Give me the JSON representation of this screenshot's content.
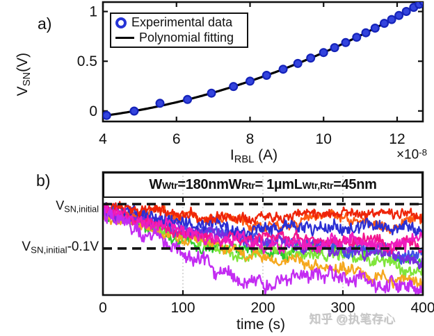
{
  "ui": {
    "panel_a_label": "a)",
    "panel_b_label": "b)",
    "watermark": "知乎 @执笔存心"
  },
  "rich_labels": {
    "a_ylabel": [
      [
        "V",
        0
      ],
      [
        "SN",
        1
      ],
      [
        "(V)",
        0
      ]
    ],
    "a_xlabel": [
      [
        "I",
        0
      ],
      [
        "RBL",
        1
      ],
      [
        " (A)",
        0
      ]
    ],
    "a_x_multiplier": [
      [
        "×10",
        0
      ],
      [
        "-8",
        2
      ]
    ],
    "b_ref_top": [
      [
        "V",
        0
      ],
      [
        "SN,initial",
        1
      ]
    ],
    "b_ref_bottom": [
      [
        "V",
        0
      ],
      [
        "SN,initial",
        1
      ],
      [
        "-0.1V",
        0
      ]
    ],
    "b_annotation": [
      [
        "W",
        0
      ],
      [
        "Wtr",
        1
      ],
      [
        "=180nm ",
        0
      ],
      [
        "W",
        0
      ],
      [
        "Rtr",
        1
      ],
      [
        "= 1µm ",
        0
      ],
      [
        "L",
        0
      ],
      [
        "Wtr,Rtr",
        1
      ],
      [
        "=45nm",
        0
      ]
    ],
    "b_xlabel": [
      [
        "time (s)",
        0
      ]
    ]
  },
  "legend": {
    "position": "top-left",
    "entries": [
      {
        "marker": "circle",
        "label": "Experimental data"
      },
      {
        "marker": "line",
        "label": "Polynomial fitting"
      }
    ]
  },
  "colors": {
    "axis": "#111111",
    "grid": "#c4c4c4",
    "dashed_reference": "#111111",
    "marker_fill": "#3444dd",
    "marker_edge": "#1523b9",
    "fit_line": "#000000",
    "watermark": "#c9c9c9"
  },
  "chart_data": [
    {
      "type": "scatter",
      "title": "",
      "xlabel": "I_RBL (A)",
      "ylabel": "V_SN (V)",
      "x_unit_multiplier": "×10^-8",
      "xlim": [
        4,
        12.7
      ],
      "ylim": [
        -0.106,
        1.095
      ],
      "xticks": [
        4,
        6,
        8,
        10,
        12
      ],
      "yticks": [
        0,
        0.5,
        1
      ],
      "ytick_labels": [
        "0",
        "0.5",
        "1"
      ],
      "grid": false,
      "legend_position": "top-left",
      "series": [
        {
          "name": "Experimental data",
          "type": "scatter",
          "marker": "circle",
          "color": "#3444dd",
          "edge_color": "#1523b9",
          "points": [
            [
              4.1,
              -0.045
            ],
            [
              4.85,
              -0.001
            ],
            [
              5.55,
              0.077
            ],
            [
              6.3,
              0.115
            ],
            [
              6.95,
              0.179
            ],
            [
              7.55,
              0.246
            ],
            [
              8.0,
              0.3
            ],
            [
              8.45,
              0.358
            ],
            [
              8.9,
              0.42
            ],
            [
              9.3,
              0.478
            ],
            [
              9.65,
              0.532
            ],
            [
              10.0,
              0.5875
            ],
            [
              10.3,
              0.637
            ],
            [
              10.6,
              0.688
            ],
            [
              10.9,
              0.7413
            ],
            [
              11.15,
              0.7867
            ],
            [
              11.4,
              0.8334
            ],
            [
              11.65,
              0.881
            ],
            [
              11.85,
              0.92
            ],
            [
              12.05,
              0.96
            ],
            [
              12.25,
              1.001
            ],
            [
              12.45,
              1.042
            ],
            [
              12.6,
              1.073
            ],
            [
              12.72,
              1.099
            ]
          ]
        },
        {
          "name": "Polynomial fitting",
          "type": "line",
          "color": "#000000",
          "poly_coeffs": [
            0.009375,
            -0.025,
            -0.1
          ],
          "x_range": [
            4.0,
            12.7
          ]
        }
      ]
    },
    {
      "type": "line",
      "title": "",
      "xlabel": "time (s)",
      "ylabel": "",
      "xlim": [
        0,
        400
      ],
      "ylim": [
        -0.205,
        0.072
      ],
      "xticks": [
        0,
        100,
        200,
        300,
        400
      ],
      "grid_x": [
        100,
        200,
        300
      ],
      "annotation": "W_Wtr=180nm W_Rtr= 1µm L_Wtr,Rtr=45nm",
      "reference_lines": [
        {
          "label": "V_SN,initial",
          "value": 0
        },
        {
          "label": "V_SN,initial-0.1V",
          "value": -0.1
        }
      ],
      "traces": [
        {
          "name": "trace-green",
          "color": "#2fca2f",
          "seed": 99,
          "noise": 0.013,
          "keypoints": [
            [
              0,
              -0.014
            ],
            [
              100,
              -0.088
            ],
            [
              200,
              -0.108
            ],
            [
              300,
              -0.1
            ],
            [
              400,
              -0.128
            ]
          ]
        },
        {
          "name": "trace-lightgreen",
          "color": "#7fe53a",
          "seed": 110,
          "noise": 0.013,
          "keypoints": [
            [
              0,
              -0.018
            ],
            [
              100,
              -0.072
            ],
            [
              160,
              -0.115
            ],
            [
              220,
              -0.1
            ],
            [
              300,
              -0.128
            ],
            [
              400,
              -0.148
            ]
          ]
        },
        {
          "name": "trace-orange",
          "color": "#f5a81e",
          "seed": 121,
          "noise": 0.012,
          "keypoints": [
            [
              0,
              -0.02
            ],
            [
              100,
              -0.08
            ],
            [
              200,
              -0.118
            ],
            [
              300,
              -0.152
            ],
            [
              400,
              -0.178
            ]
          ]
        },
        {
          "name": "trace-blue-dark",
          "color": "#4150e8",
          "seed": 44,
          "noise": 0.013,
          "keypoints": [
            [
              0,
              -0.015
            ],
            [
              100,
              -0.058
            ],
            [
              250,
              -0.085
            ],
            [
              400,
              -0.115
            ]
          ]
        },
        {
          "name": "trace-purple",
          "color": "#7a2be0",
          "seed": 55,
          "noise": 0.013,
          "keypoints": [
            [
              0,
              -0.012
            ],
            [
              100,
              -0.05
            ],
            [
              200,
              -0.082
            ],
            [
              300,
              -0.108
            ],
            [
              400,
              -0.125
            ]
          ]
        },
        {
          "name": "trace-orangered",
          "color": "#ff5a12",
          "seed": 22,
          "noise": 0.011,
          "keypoints": [
            [
              0,
              -0.008
            ],
            [
              100,
              -0.022
            ],
            [
              200,
              -0.048
            ],
            [
              280,
              -0.028
            ],
            [
              340,
              -0.05
            ],
            [
              400,
              -0.038
            ]
          ]
        },
        {
          "name": "trace-blue",
          "color": "#2b2fd4",
          "seed": 33,
          "noise": 0.014,
          "keypoints": [
            [
              0,
              -0.008
            ],
            [
              100,
              -0.042
            ],
            [
              200,
              -0.068
            ],
            [
              300,
              -0.048
            ],
            [
              400,
              -0.065
            ]
          ]
        },
        {
          "name": "trace-red",
          "color": "#ee2409",
          "seed": 11,
          "noise": 0.011,
          "keypoints": [
            [
              0,
              -0.004
            ],
            [
              60,
              -0.012
            ],
            [
              140,
              -0.03
            ],
            [
              220,
              -0.018
            ],
            [
              300,
              -0.014
            ],
            [
              400,
              -0.028
            ]
          ]
        },
        {
          "name": "trace-deeppink",
          "color": "#f3148d",
          "seed": 88,
          "noise": 0.012,
          "keypoints": [
            [
              0,
              -0.005
            ],
            [
              100,
              -0.068
            ],
            [
              200,
              -0.078
            ],
            [
              300,
              -0.083
            ],
            [
              400,
              -0.094
            ]
          ]
        },
        {
          "name": "trace-magenta",
          "color": "#ee1cbe",
          "seed": 77,
          "noise": 0.014,
          "keypoints": [
            [
              0,
              -0.006
            ],
            [
              80,
              -0.05
            ],
            [
              150,
              -0.088
            ],
            [
              250,
              -0.094
            ],
            [
              400,
              -0.088
            ]
          ]
        },
        {
          "name": "trace-violet",
          "color": "#c32cf2",
          "seed": 66,
          "noise": 0.016,
          "keypoints": [
            [
              0,
              -0.012
            ],
            [
              60,
              -0.06
            ],
            [
              130,
              -0.13
            ],
            [
              170,
              -0.165
            ],
            [
              230,
              -0.17
            ],
            [
              300,
              -0.16
            ],
            [
              360,
              -0.175
            ],
            [
              400,
              -0.19
            ]
          ]
        }
      ]
    }
  ]
}
